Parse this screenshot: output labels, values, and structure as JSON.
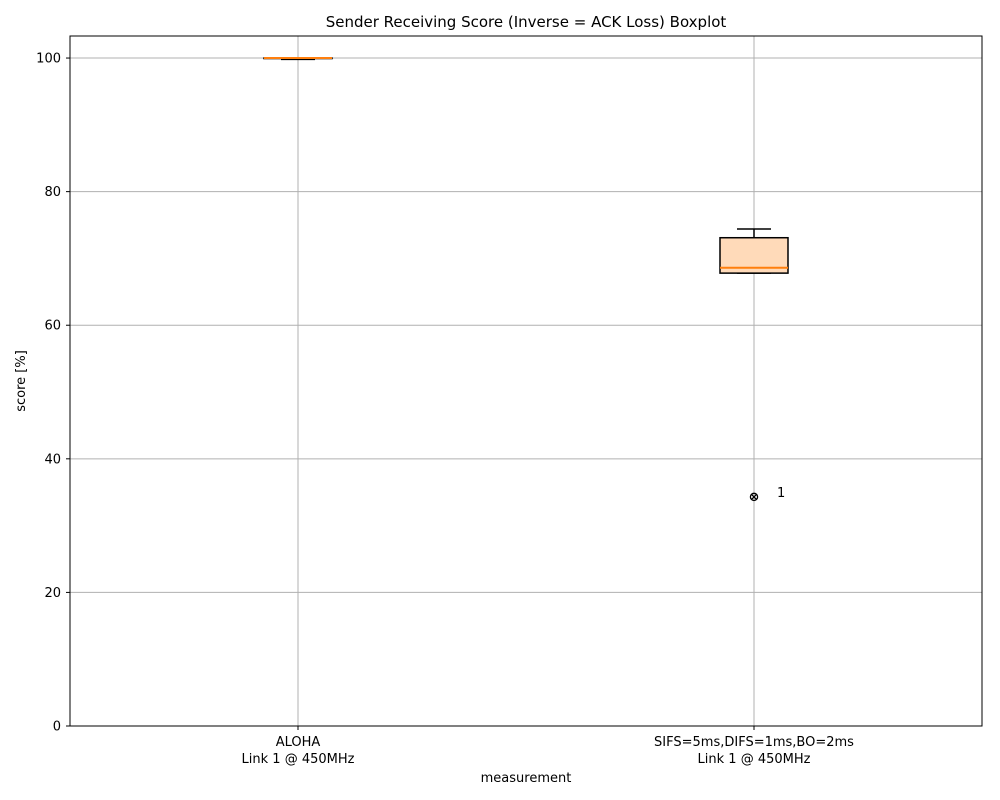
{
  "chart_data": {
    "type": "boxplot",
    "title": "Sender Receiving Score (Inverse = ACK Loss) Boxplot",
    "xlabel": "measurement",
    "ylabel": "score [%]",
    "ylim": [
      0,
      103.3
    ],
    "yticks": [
      0,
      20,
      40,
      60,
      80,
      100
    ],
    "grid": true,
    "categories": [
      {
        "line1": "ALOHA",
        "line2": "Link 1 @ 450MHz"
      },
      {
        "line1": "SIFS=5ms,DIFS=1ms,BO=2ms",
        "line2": "Link 1 @ 450MHz"
      }
    ],
    "boxes": [
      {
        "whisker_low": 99.8,
        "q1": 100.0,
        "median": 100.0,
        "q3": 100.0,
        "whisker_high": 100.0,
        "outliers": []
      },
      {
        "whisker_low": 67.8,
        "q1": 67.8,
        "median": 68.6,
        "q3": 73.1,
        "whisker_high": 74.4,
        "outliers": [
          {
            "value": 34.3,
            "label": "1"
          }
        ]
      }
    ],
    "colors": {
      "box_fill": "#ffdab9",
      "median": "#ff7f0e",
      "edge": "#000000",
      "grid": "#b0b0b0"
    }
  }
}
